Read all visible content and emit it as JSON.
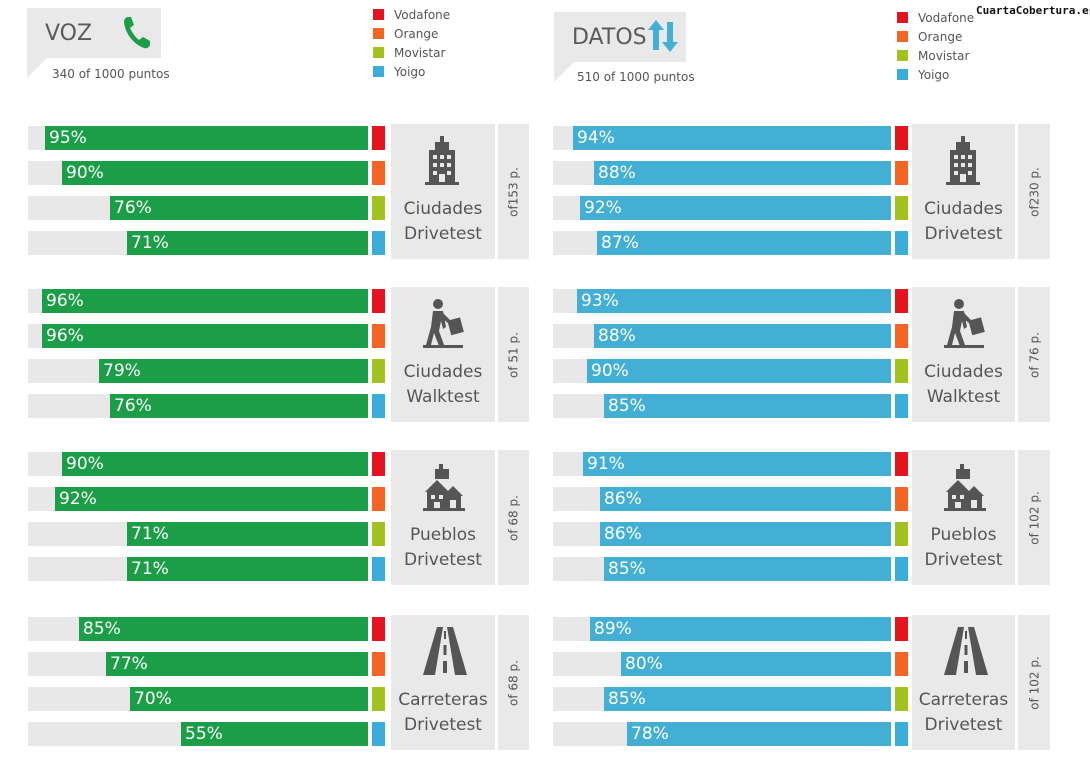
{
  "watermark": "CuartaCobertura.es",
  "operators": [
    {
      "name": "Vodafone",
      "color": "#e3141d"
    },
    {
      "name": "Orange",
      "color": "#f26522"
    },
    {
      "name": "Movistar",
      "color": "#a3c11f"
    },
    {
      "name": "Yoigo",
      "color": "#3aaed8"
    }
  ],
  "voz": {
    "title": "VOZ",
    "subtitle": "340 of 1000 puntos",
    "icon": "phone-icon",
    "color": "#1c9e48"
  },
  "datos": {
    "title": "DATOS",
    "subtitle": "510 of 1000 puntos",
    "icon": "up-down-arrows-icon",
    "color": "#43afd5"
  },
  "categories": [
    {
      "line1": "Ciudades",
      "line2": "Drivetest",
      "icon": "building-icon",
      "voz_points": "of153 p.",
      "datos_points": "of230 p."
    },
    {
      "line1": "Ciudades",
      "line2": "Walktest",
      "icon": "walking-person-icon",
      "voz_points": "of 51 p.",
      "datos_points": "of 76 p."
    },
    {
      "line1": "Pueblos",
      "line2": "Drivetest",
      "icon": "village-icon",
      "voz_points": "of 68 p.",
      "datos_points": "of 102 p."
    },
    {
      "line1": "Carreteras",
      "line2": "Drivetest",
      "icon": "road-icon",
      "voz_points": "of 68 p.",
      "datos_points": "of 102 p."
    }
  ],
  "chart_data": [
    {
      "type": "bar",
      "title": "VOZ",
      "subtitle": "340 of 1000 puntos",
      "categories": [
        "Ciudades Drivetest",
        "Ciudades Walktest",
        "Pueblos Drivetest",
        "Carreteras Drivetest"
      ],
      "series": [
        {
          "name": "Vodafone",
          "values": [
            95,
            96,
            90,
            85
          ]
        },
        {
          "name": "Orange",
          "values": [
            90,
            96,
            92,
            77
          ]
        },
        {
          "name": "Movistar",
          "values": [
            76,
            79,
            71,
            70
          ]
        },
        {
          "name": "Yoigo",
          "values": [
            71,
            76,
            71,
            55
          ]
        }
      ],
      "labels": [
        [
          "95%",
          "90%",
          "76%",
          "71%"
        ],
        [
          "96%",
          "96%",
          "79%",
          "76%"
        ],
        [
          "90%",
          "92%",
          "71%",
          "71%"
        ],
        [
          "85%",
          "77%",
          "70%",
          "55%"
        ]
      ],
      "ylim": [
        0,
        100
      ],
      "orientation": "horizontal, right-aligned"
    },
    {
      "type": "bar",
      "title": "DATOS",
      "subtitle": "510 of 1000 puntos",
      "categories": [
        "Ciudades Drivetest",
        "Ciudades Walktest",
        "Pueblos Drivetest",
        "Carreteras Drivetest"
      ],
      "series": [
        {
          "name": "Vodafone",
          "values": [
            94,
            93,
            91,
            89
          ]
        },
        {
          "name": "Orange",
          "values": [
            88,
            88,
            86,
            80
          ]
        },
        {
          "name": "Movistar",
          "values": [
            92,
            90,
            86,
            85
          ]
        },
        {
          "name": "Yoigo",
          "values": [
            87,
            85,
            85,
            78
          ]
        }
      ],
      "labels": [
        [
          "94%",
          "88%",
          "92%",
          "87%"
        ],
        [
          "93%",
          "88%",
          "90%",
          "85%"
        ],
        [
          "91%",
          "86%",
          "86%",
          "85%"
        ],
        [
          "89%",
          "80%",
          "85%",
          "78%"
        ]
      ],
      "ylim": [
        0,
        100
      ],
      "orientation": "horizontal, right-aligned"
    }
  ]
}
